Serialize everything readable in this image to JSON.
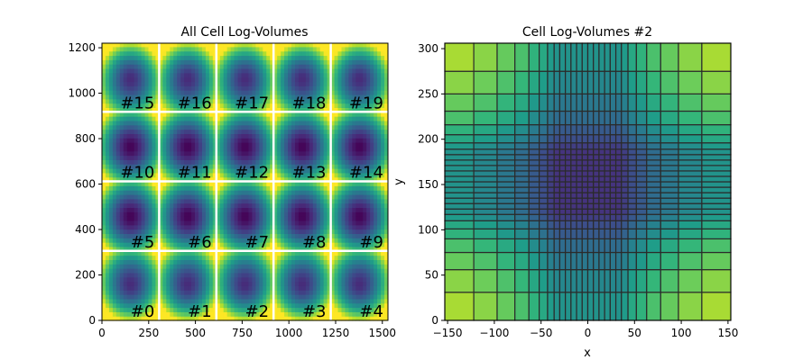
{
  "chart_data": [
    {
      "type": "heatmap",
      "title": "All Cell Log-Volumes",
      "xlabel": "",
      "ylabel": "",
      "xlim": [
        0,
        1530
      ],
      "ylim": [
        0,
        1220
      ],
      "xticks": [
        0,
        250,
        500,
        750,
        1000,
        1250,
        1500
      ],
      "yticks": [
        0,
        200,
        400,
        600,
        800,
        1000,
        1200
      ],
      "grid_rows": 4,
      "grid_cols": 5,
      "block_size": 306,
      "colormap": "viridis",
      "separator_color": "#ffffff",
      "label_color": "#ffffff",
      "cell_labels": [
        "#0",
        "#1",
        "#2",
        "#3",
        "#4",
        "#5",
        "#6",
        "#7",
        "#8",
        "#9",
        "#10",
        "#11",
        "#12",
        "#13",
        "#14",
        "#15",
        "#16",
        "#17",
        "#18",
        "#19"
      ]
    },
    {
      "type": "heatmap",
      "title": "Cell Log-Volumes #2",
      "xlabel": "x",
      "ylabel": "y",
      "xlim": [
        -153,
        153
      ],
      "ylim": [
        0,
        306
      ],
      "xticks": [
        -150,
        -100,
        -50,
        0,
        50,
        100,
        150
      ],
      "yticks": [
        0,
        50,
        100,
        150,
        200,
        250,
        300
      ],
      "colormap": "viridis",
      "cell_edge_color": "#2b2b2b",
      "x_edges": [
        -153,
        -122,
        -97,
        -78,
        -63,
        -52,
        -43,
        -36,
        -30,
        -24,
        -18,
        -12,
        -6,
        0,
        6,
        12,
        18,
        24,
        30,
        36,
        43,
        52,
        63,
        78,
        97,
        122,
        153
      ],
      "y_edges": [
        0,
        31,
        56,
        75,
        90,
        101,
        110,
        117,
        123,
        129,
        135,
        141,
        147,
        153,
        159,
        165,
        171,
        177,
        183,
        189,
        196,
        205,
        216,
        231,
        250,
        275,
        306
      ]
    }
  ]
}
